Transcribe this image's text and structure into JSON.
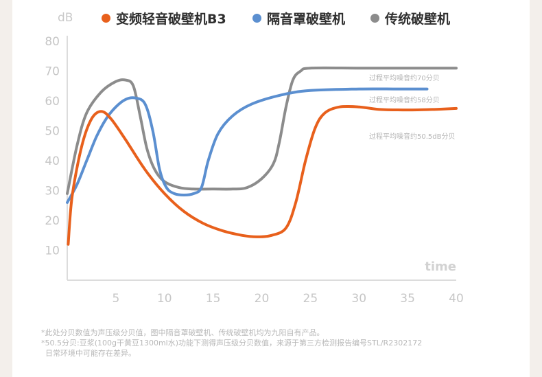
{
  "legend": [
    {
      "label": "变频轻音破壁机B3",
      "color": "#e8601c"
    },
    {
      "label": "隔音罩破壁机",
      "color": "#5b8fd0"
    },
    {
      "label": "传统破壁机",
      "color": "#8c8c8c"
    }
  ],
  "annotations": [
    {
      "text": "过程平均噪音约70分贝",
      "series": "传统破壁机"
    },
    {
      "text": "过程平均噪音约58分贝",
      "series": "隔音罩破壁机"
    },
    {
      "text": "过程平均噪音约50.5dB分贝",
      "series": "变频轻音破壁机B3"
    }
  ],
  "footnotes": [
    "*此处分贝数值为声压级分贝值，图中隔音罩破壁机、传统破壁机均为九阳自有产品。",
    "*50.5分贝:豆浆(100g干黄豆1300ml水)功能下测得声压级分贝数值，来源于第三方检测报告编号STL/R2302172",
    "日常环境中可能存在差异。"
  ],
  "chart_data": {
    "type": "line",
    "ylabel": "dB",
    "xlabel": "time",
    "xlim": [
      0,
      40
    ],
    "ylim": [
      0,
      80
    ],
    "xticks": [
      5,
      10,
      15,
      20,
      25,
      30,
      35,
      40
    ],
    "yticks": [
      10,
      20,
      30,
      40,
      50,
      60,
      70,
      80
    ],
    "grid": false,
    "legend_position": "top",
    "series": [
      {
        "name": "变频轻音破壁机B3",
        "color": "#e8601c",
        "points": [
          [
            0.1,
            12
          ],
          [
            0.5,
            28
          ],
          [
            1.5,
            45
          ],
          [
            2.5,
            54
          ],
          [
            3.5,
            56.5
          ],
          [
            4.5,
            54
          ],
          [
            6,
            47
          ],
          [
            8,
            37
          ],
          [
            10,
            29
          ],
          [
            12,
            23
          ],
          [
            14,
            19
          ],
          [
            16,
            16.5
          ],
          [
            18,
            15
          ],
          [
            19.5,
            14.5
          ],
          [
            21,
            15
          ],
          [
            22.5,
            17.5
          ],
          [
            23.5,
            26
          ],
          [
            24.5,
            40
          ],
          [
            25.5,
            51
          ],
          [
            26.5,
            56
          ],
          [
            28,
            58
          ],
          [
            30,
            58
          ],
          [
            32,
            57.2
          ],
          [
            34,
            57
          ],
          [
            36,
            57
          ],
          [
            38,
            57.2
          ],
          [
            40,
            57.5
          ]
        ]
      },
      {
        "name": "隔音罩破壁机",
        "color": "#5b8fd0",
        "points": [
          [
            0,
            26
          ],
          [
            1,
            32
          ],
          [
            2,
            40
          ],
          [
            3,
            48
          ],
          [
            4,
            54
          ],
          [
            5,
            58
          ],
          [
            6,
            60.5
          ],
          [
            7,
            61
          ],
          [
            8,
            59
          ],
          [
            8.8,
            50
          ],
          [
            9.5,
            37
          ],
          [
            10.2,
            31
          ],
          [
            11,
            29
          ],
          [
            12,
            28.5
          ],
          [
            13,
            29
          ],
          [
            13.8,
            31
          ],
          [
            14.5,
            40
          ],
          [
            15.5,
            49
          ],
          [
            17,
            55
          ],
          [
            19,
            59
          ],
          [
            22,
            62
          ],
          [
            25,
            63.5
          ],
          [
            30,
            64
          ],
          [
            34,
            64
          ],
          [
            37,
            64
          ]
        ]
      },
      {
        "name": "传统破壁机",
        "color": "#8c8c8c",
        "points": [
          [
            0,
            29
          ],
          [
            1,
            45
          ],
          [
            2,
            56
          ],
          [
            3.5,
            63
          ],
          [
            5,
            66.5
          ],
          [
            6,
            67
          ],
          [
            6.8,
            65
          ],
          [
            7.5,
            55
          ],
          [
            8.2,
            44
          ],
          [
            9,
            37
          ],
          [
            10,
            33
          ],
          [
            11.5,
            31
          ],
          [
            13,
            30.5
          ],
          [
            15,
            30.5
          ],
          [
            17,
            30.5
          ],
          [
            18.5,
            31
          ],
          [
            20,
            34
          ],
          [
            21.2,
            39
          ],
          [
            21.8,
            46
          ],
          [
            22.5,
            58
          ],
          [
            23.2,
            67
          ],
          [
            24,
            70
          ],
          [
            25,
            71
          ],
          [
            30,
            71
          ],
          [
            35,
            71
          ],
          [
            40,
            71
          ]
        ]
      }
    ]
  }
}
